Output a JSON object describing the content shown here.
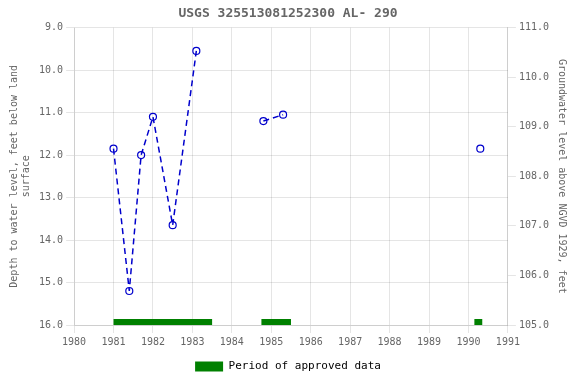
{
  "chart_data": {
    "type": "line",
    "title": "USGS 325513081252300 AL- 290",
    "y_label": "Depth to water level, feet below land\nsurface",
    "y2_label": "Groundwater level above NGVD 1929, feet",
    "xlim": [
      1980,
      1991
    ],
    "xticks": [
      1980,
      1981,
      1982,
      1983,
      1984,
      1985,
      1986,
      1987,
      1988,
      1989,
      1990,
      1991
    ],
    "ylim": [
      16.0,
      9.0
    ],
    "yticks": [
      {
        "value": 9.0,
        "label": "9.0"
      },
      {
        "value": 10.0,
        "label": "10.0"
      },
      {
        "value": 11.0,
        "label": "11.0"
      },
      {
        "value": 12.0,
        "label": "12.0"
      },
      {
        "value": 13.0,
        "label": "13.0"
      },
      {
        "value": 14.0,
        "label": "14.0"
      },
      {
        "value": 15.0,
        "label": "15.0"
      },
      {
        "value": 16.0,
        "label": "16.0"
      }
    ],
    "y2lim": [
      105.0,
      111.0
    ],
    "y2ticks": [
      {
        "value": 105.0,
        "label": "105.0"
      },
      {
        "value": 106.0,
        "label": "106.0"
      },
      {
        "value": 107.0,
        "label": "107.0"
      },
      {
        "value": 108.0,
        "label": "108.0"
      },
      {
        "value": 109.0,
        "label": "109.0"
      },
      {
        "value": 110.0,
        "label": "110.0"
      },
      {
        "value": 111.0,
        "label": "111.0"
      }
    ],
    "grid": true,
    "legend": "bottom",
    "series": [
      {
        "color": "#0000cc",
        "line_style": "dashed",
        "marker": "open_circle",
        "x": [
          1981.0,
          1981.4,
          1981.7,
          1982.0,
          1982.5,
          1983.1
        ],
        "values": [
          11.85,
          15.2,
          12.0,
          11.1,
          13.65,
          9.55
        ]
      },
      {
        "color": "#0000cc",
        "line_style": "dashed",
        "marker": "open_circle",
        "x": [
          1984.8,
          1985.3
        ],
        "values": [
          11.2,
          11.05
        ]
      },
      {
        "color": "#0000cc",
        "line_style": "dashed",
        "marker": "open_circle",
        "x": [
          1990.3
        ],
        "values": [
          11.85
        ]
      }
    ],
    "approved_periods": {
      "name": "Period of approved data",
      "color": "#008000",
      "ranges": [
        [
          1981.0,
          1983.5
        ],
        [
          1984.75,
          1985.5
        ],
        [
          1990.15,
          1990.35
        ]
      ]
    }
  }
}
